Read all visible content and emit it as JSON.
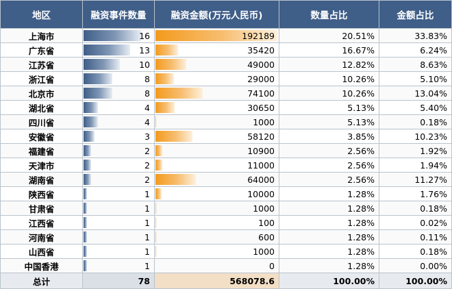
{
  "headers": {
    "region": "地区",
    "count": "融资事件数量",
    "amount": "融资金额(万元人民币)",
    "count_share": "数量占比",
    "amount_share": "金额占比"
  },
  "colors": {
    "header_bg": "#3f5e88",
    "count_bar": "#3f5e88",
    "amount_bar": "#f39a1d"
  },
  "rows": [
    {
      "region": "上海市",
      "count": "16",
      "amount": "192189",
      "count_share": "20.51%",
      "amount_share": "33.83%"
    },
    {
      "region": "广东省",
      "count": "13",
      "amount": "35420",
      "count_share": "16.67%",
      "amount_share": "6.24%"
    },
    {
      "region": "江苏省",
      "count": "10",
      "amount": "49000",
      "count_share": "12.82%",
      "amount_share": "8.63%"
    },
    {
      "region": "浙江省",
      "count": "8",
      "amount": "29000",
      "count_share": "10.26%",
      "amount_share": "5.10%"
    },
    {
      "region": "北京市",
      "count": "8",
      "amount": "74100",
      "count_share": "10.26%",
      "amount_share": "13.04%"
    },
    {
      "region": "湖北省",
      "count": "4",
      "amount": "30650",
      "count_share": "5.13%",
      "amount_share": "5.40%"
    },
    {
      "region": "四川省",
      "count": "4",
      "amount": "1000",
      "count_share": "5.13%",
      "amount_share": "0.18%"
    },
    {
      "region": "安徽省",
      "count": "3",
      "amount": "58120",
      "count_share": "3.85%",
      "amount_share": "10.23%"
    },
    {
      "region": "福建省",
      "count": "2",
      "amount": "10900",
      "count_share": "2.56%",
      "amount_share": "1.92%"
    },
    {
      "region": "天津市",
      "count": "2",
      "amount": "11000",
      "count_share": "2.56%",
      "amount_share": "1.94%"
    },
    {
      "region": "湖南省",
      "count": "2",
      "amount": "64000",
      "count_share": "2.56%",
      "amount_share": "11.27%"
    },
    {
      "region": "陕西省",
      "count": "1",
      "amount": "10000",
      "count_share": "1.28%",
      "amount_share": "1.76%"
    },
    {
      "region": "甘肃省",
      "count": "1",
      "amount": "1000",
      "count_share": "1.28%",
      "amount_share": "0.18%"
    },
    {
      "region": "江西省",
      "count": "1",
      "amount": "100",
      "count_share": "1.28%",
      "amount_share": "0.02%"
    },
    {
      "region": "河南省",
      "count": "1",
      "amount": "600",
      "count_share": "1.28%",
      "amount_share": "0.11%"
    },
    {
      "region": "山西省",
      "count": "1",
      "amount": "1000",
      "count_share": "1.28%",
      "amount_share": "0.18%"
    },
    {
      "region": "中国香港",
      "count": "1",
      "amount": "0",
      "count_share": "1.28%",
      "amount_share": "0.00%"
    }
  ],
  "total": {
    "region": "总计",
    "count": "78",
    "amount": "568078.6",
    "count_share": "100.00%",
    "amount_share": "100.00%"
  }
}
